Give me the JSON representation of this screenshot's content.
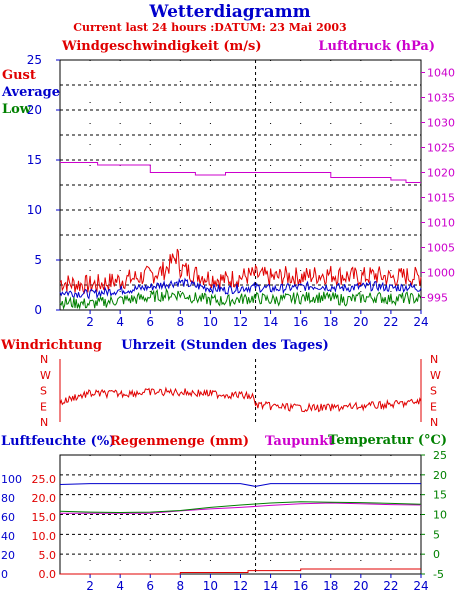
{
  "header": {
    "title": "Wetterdiagramm",
    "subtitle": "Current last 24 hours :DATUM: 23 Mai 2003"
  },
  "colors": {
    "red": "#e00000",
    "blue": "#0000cc",
    "green": "#008000",
    "magenta": "#cc00cc",
    "grid": "#000000",
    "axis_blue": "#0000cc"
  },
  "chart_data": [
    {
      "type": "line",
      "id": "wind",
      "title": "Windgeschwindigkeit (m/s)",
      "right_title": "Luftdruck (hPa)",
      "legend": [
        "Gust",
        "Average",
        "Low"
      ],
      "x_ticks": [
        "2",
        "4",
        "6",
        "8",
        "10",
        "12",
        "14",
        "16",
        "18",
        "20",
        "22",
        "24"
      ],
      "xlim": [
        0,
        24
      ],
      "left_ticks": [
        "0",
        "5",
        "10",
        "15",
        "20",
        "25"
      ],
      "ylim": [
        0,
        25
      ],
      "right_ticks": [
        "995",
        "1000",
        "1005",
        "1010",
        "1015",
        "1020",
        "1025",
        "1030",
        "1035",
        "1040"
      ],
      "ylim_right": [
        992.5,
        1042.5
      ],
      "grid": true,
      "series": [
        {
          "name": "Gust",
          "color": "#e00000",
          "x": [
            0,
            1,
            2,
            3,
            4,
            5,
            6,
            7,
            7.8,
            8,
            9,
            10,
            11,
            12,
            13,
            14,
            15,
            16,
            17,
            18,
            19,
            20,
            21,
            22,
            23,
            24
          ],
          "y": [
            2.8,
            2.6,
            2.5,
            2.7,
            3.0,
            3.2,
            3.5,
            4.0,
            5.5,
            4.2,
            3.6,
            3.2,
            3.0,
            3.3,
            3.5,
            3.2,
            3.4,
            3.3,
            3.5,
            3.6,
            3.4,
            3.3,
            3.5,
            3.2,
            3.4,
            3.3
          ]
        },
        {
          "name": "Average",
          "color": "#0000cc",
          "x": [
            0,
            1,
            2,
            3,
            4,
            5,
            6,
            7,
            8,
            9,
            10,
            11,
            12,
            13,
            14,
            15,
            16,
            17,
            18,
            19,
            20,
            21,
            22,
            23,
            24
          ],
          "y": [
            1.8,
            1.7,
            1.6,
            1.8,
            2.0,
            2.1,
            2.3,
            2.6,
            2.8,
            2.4,
            2.2,
            2.0,
            2.2,
            2.3,
            2.1,
            2.2,
            2.3,
            2.4,
            2.3,
            2.2,
            2.3,
            2.4,
            2.2,
            2.3,
            2.2
          ]
        },
        {
          "name": "Low",
          "color": "#008000",
          "x": [
            0,
            1,
            2,
            3,
            4,
            5,
            6,
            7,
            8,
            9,
            10,
            11,
            12,
            13,
            14,
            15,
            16,
            17,
            18,
            19,
            20,
            21,
            22,
            23,
            24
          ],
          "y": [
            0.8,
            0.7,
            0.6,
            0.8,
            1.0,
            1.1,
            1.3,
            1.5,
            1.6,
            1.2,
            1.0,
            0.9,
            1.1,
            1.2,
            1.0,
            1.1,
            1.2,
            1.3,
            1.2,
            1.0,
            1.2,
            1.3,
            1.1,
            1.2,
            1.1
          ]
        },
        {
          "name": "Luftdruck",
          "color": "#cc00cc",
          "axis": "right",
          "x": [
            0,
            2.5,
            2.5,
            6.0,
            6.0,
            9.0,
            9.0,
            11.0,
            11.0,
            13.0,
            13.0,
            18.0,
            18.0,
            22.0,
            22.0,
            23.0,
            23.0,
            24.0
          ],
          "y": [
            1022.0,
            1022.0,
            1021.5,
            1021.5,
            1020.0,
            1020.0,
            1019.5,
            1019.5,
            1020.0,
            1020.0,
            1020.0,
            1020.0,
            1019.0,
            1019.0,
            1018.5,
            1018.5,
            1018.0,
            1018.0
          ]
        }
      ]
    },
    {
      "type": "line",
      "id": "winddir",
      "title": "Windrichtung",
      "xlabel": "Uhrzeit (Stunden des Tages)",
      "direction_ticks": [
        "N",
        "W",
        "S",
        "E",
        "N"
      ],
      "xlim": [
        0,
        24
      ],
      "grid": false,
      "series": [
        {
          "name": "Windrichtung",
          "color": "#e00000",
          "x": [
            0,
            1,
            2,
            4,
            6,
            8,
            10,
            12,
            12.8,
            13,
            14,
            16,
            18,
            20,
            22,
            23,
            24
          ],
          "y": [
            1.6,
            1.2,
            1.0,
            1.0,
            0.9,
            0.9,
            1.0,
            1.1,
            1.2,
            1.7,
            1.8,
            1.9,
            1.9,
            1.8,
            1.7,
            1.6,
            1.5
          ]
        }
      ]
    },
    {
      "type": "line",
      "id": "humidity",
      "title": "Luftfeuchte (%)",
      "title_rain": "Regenmenge (mm)",
      "title_dew": "Taupunkt",
      "right_title": "Temperatur (°C)",
      "x_ticks": [
        "2",
        "4",
        "6",
        "8",
        "10",
        "12",
        "14",
        "16",
        "18",
        "20",
        "22",
        "24"
      ],
      "xlim": [
        0,
        24
      ],
      "humidity_ticks": [
        "0",
        "20",
        "40",
        "60",
        "80",
        "100"
      ],
      "ylim_humidity": [
        0,
        125
      ],
      "rain_ticks": [
        "0.0",
        "5.0",
        "10.0",
        "15.0",
        "20.0",
        "25.0"
      ],
      "ylim_rain": [
        0,
        31.25
      ],
      "temp_ticks": [
        "-5",
        "0",
        "5",
        "10",
        "15",
        "20",
        "25"
      ],
      "ylim_temp": [
        -5,
        25
      ],
      "grid": true,
      "series": [
        {
          "name": "Luftfeuchte",
          "color": "#0000cc",
          "x": [
            0,
            2,
            4,
            6,
            8,
            10,
            12,
            13,
            14,
            16,
            18,
            20,
            22,
            24
          ],
          "y": [
            94,
            95,
            95,
            95,
            95,
            95,
            95,
            92,
            95,
            95,
            95,
            95,
            95,
            95
          ]
        },
        {
          "name": "Regenmenge",
          "color": "#e00000",
          "x": [
            0,
            8,
            8,
            12.5,
            12.5,
            16,
            16,
            24
          ],
          "y": [
            0.0,
            0.0,
            0.4,
            0.4,
            0.9,
            0.9,
            1.3,
            1.3
          ]
        },
        {
          "name": "Taupunkt",
          "color": "#cc00cc",
          "x": [
            0,
            2,
            4,
            6,
            8,
            10,
            12,
            14,
            16,
            18,
            20,
            22,
            24
          ],
          "y": [
            10.3,
            10.3,
            10.3,
            10.3,
            10.9,
            11.4,
            11.8,
            12.3,
            12.7,
            12.9,
            12.7,
            12.5,
            12.4
          ]
        },
        {
          "name": "Temperatur",
          "color": "#008000",
          "x": [
            0,
            2,
            4,
            6,
            8,
            10,
            12,
            14,
            16,
            18,
            20,
            22,
            24
          ],
          "y": [
            10.8,
            10.6,
            10.5,
            10.6,
            11.0,
            11.8,
            12.4,
            12.9,
            13.2,
            13.1,
            13.0,
            12.8,
            12.6
          ]
        }
      ]
    }
  ]
}
